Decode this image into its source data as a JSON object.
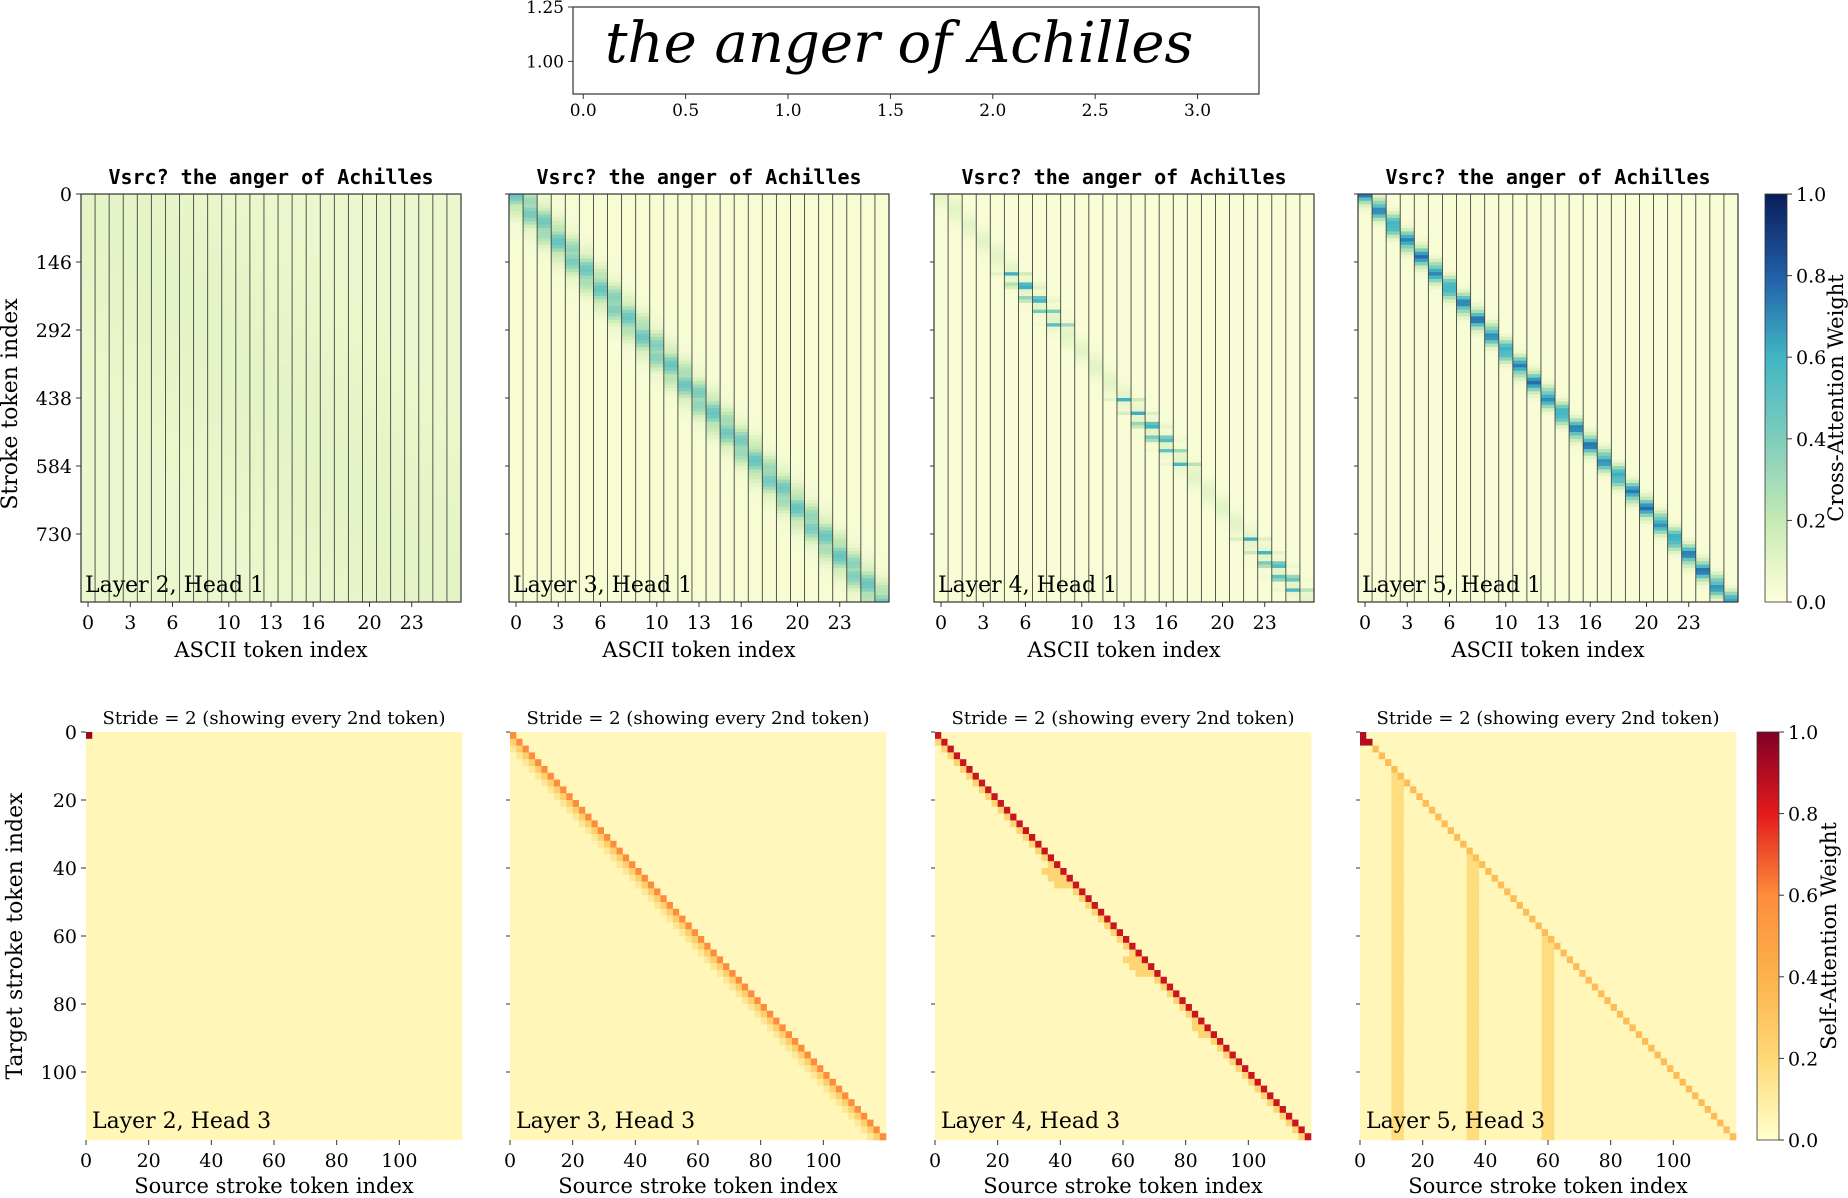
{
  "chart_data": [
    {
      "type": "line",
      "description_text": "the anger of Achilles",
      "x_ticks": [
        "0.0",
        "0.5",
        "1.0",
        "1.5",
        "2.0",
        "2.5",
        "3.0"
      ],
      "x_tick_values": [
        0.0,
        0.5,
        1.0,
        1.5,
        2.0,
        2.5,
        3.0
      ],
      "y_ticks": [
        "1.00",
        "1.25"
      ],
      "y_tick_values": [
        1.0,
        1.25
      ],
      "xlim": [
        -0.05,
        3.3
      ],
      "ylim": [
        0.85,
        1.25
      ]
    },
    {
      "type": "heatmap",
      "row": "cross-attention",
      "panels": [
        {
          "title": "Vsrc? the anger of Achilles",
          "label": "Layer 2, Head 1",
          "pattern": "diffuse",
          "xlabel": "ASCII token index"
        },
        {
          "title": "Vsrc? the anger of Achilles",
          "label": "Layer 3, Head 1",
          "pattern": "soft-diagonal",
          "xlabel": "ASCII token index"
        },
        {
          "title": "Vsrc? the anger of Achilles",
          "label": "Layer 4, Head 1",
          "pattern": "sparse-diagonal",
          "xlabel": "ASCII token index"
        },
        {
          "title": "Vsrc? the anger of Achilles",
          "label": "Layer 5, Head 1",
          "pattern": "sharp-diagonal",
          "xlabel": "ASCII token index"
        }
      ],
      "ylabel": "Stroke token index",
      "x_ticks": [
        "0",
        "3",
        "6",
        "10",
        "13",
        "16",
        "20",
        "23"
      ],
      "x_tick_values": [
        0,
        3,
        6,
        10,
        13,
        16,
        20,
        23
      ],
      "y_ticks": [
        "0",
        "146",
        "292",
        "438",
        "584",
        "730"
      ],
      "y_tick_values": [
        0,
        146,
        292,
        438,
        584,
        730
      ],
      "n_cols": 27,
      "n_rows": 876,
      "colorbar": {
        "label": "Cross-Attention Weight",
        "ticks": [
          "0.0",
          "0.2",
          "0.4",
          "0.6",
          "0.8",
          "1.0"
        ],
        "min": 0.0,
        "max": 1.0,
        "cmap": "YlGnBu"
      }
    },
    {
      "type": "heatmap",
      "row": "self-attention",
      "panels": [
        {
          "title": "Stride = 2 (showing every 2nd token)",
          "label": "Layer 2, Head 3",
          "pattern": "first-token",
          "xlabel": "Source stroke token index"
        },
        {
          "title": "Stride = 2 (showing every 2nd token)",
          "label": "Layer 3, Head 3",
          "pattern": "diagonal",
          "xlabel": "Source stroke token index"
        },
        {
          "title": "Stride = 2 (showing every 2nd token)",
          "label": "Layer 4, Head 3",
          "pattern": "sharp-diagonal",
          "xlabel": "Source stroke token index"
        },
        {
          "title": "Stride = 2 (showing every 2nd token)",
          "label": "Layer 5, Head 3",
          "pattern": "lower-triangular",
          "xlabel": "Source stroke token index"
        }
      ],
      "ylabel": "Target stroke token index",
      "x_ticks": [
        "0",
        "20",
        "40",
        "60",
        "80",
        "100"
      ],
      "x_tick_values": [
        0,
        20,
        40,
        60,
        80,
        100
      ],
      "y_ticks": [
        "0",
        "20",
        "40",
        "60",
        "80",
        "100"
      ],
      "y_tick_values": [
        0,
        20,
        40,
        60,
        80,
        100
      ],
      "n_tokens": 120,
      "colorbar": {
        "label": "Self-Attention Weight",
        "ticks": [
          "0.0",
          "0.2",
          "0.4",
          "0.6",
          "0.8",
          "1.0"
        ],
        "min": 0.0,
        "max": 1.0,
        "cmap": "YlOrRd"
      }
    }
  ]
}
